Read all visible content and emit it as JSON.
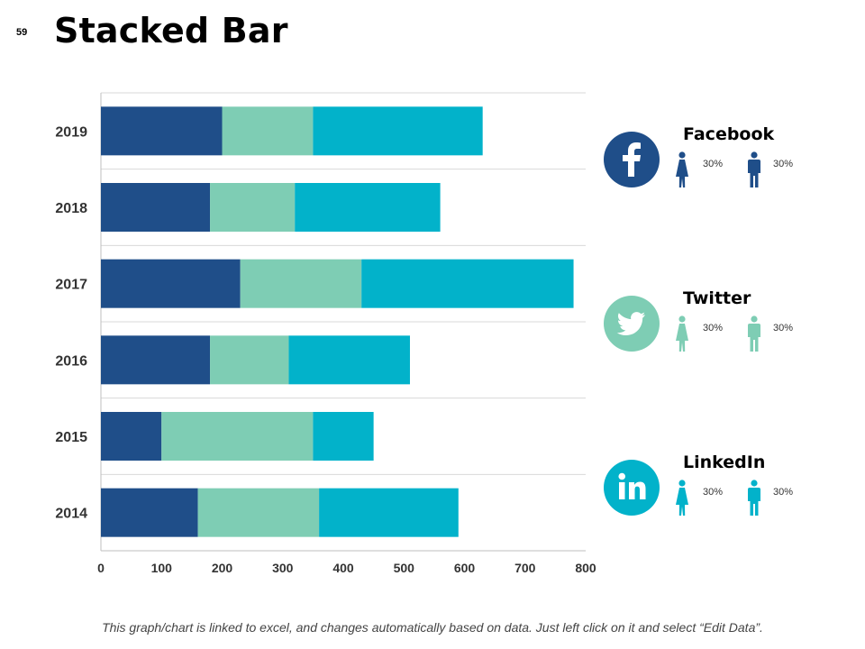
{
  "page_number": "59",
  "title": "Stacked Bar",
  "chart_data": {
    "type": "bar",
    "orientation": "horizontal",
    "stacked": true,
    "categories": [
      "2019",
      "2018",
      "2017",
      "2016",
      "2015",
      "2014"
    ],
    "series": [
      {
        "values": [
          200,
          180,
          230,
          180,
          100,
          160
        ],
        "color": "#1f4e89"
      },
      {
        "values": [
          150,
          140,
          200,
          130,
          250,
          200
        ],
        "color": "#7ecdb4"
      },
      {
        "values": [
          280,
          240,
          350,
          200,
          100,
          230
        ],
        "color": "#02b2ca"
      }
    ],
    "xlim": [
      0,
      800
    ],
    "xticks": [
      "0",
      "100",
      "200",
      "300",
      "400",
      "500",
      "600",
      "700",
      "800"
    ],
    "grid": true,
    "legend": "none"
  },
  "social": [
    {
      "name": "Facebook",
      "icon": "facebook-icon",
      "color": "#1f4e89",
      "female_pct": "30%",
      "male_pct": "30%"
    },
    {
      "name": "Twitter",
      "icon": "twitter-icon",
      "color": "#7ecdb4",
      "female_pct": "30%",
      "male_pct": "30%"
    },
    {
      "name": "LinkedIn",
      "icon": "linkedin-icon",
      "color": "#02b2ca",
      "female_pct": "30%",
      "male_pct": "30%"
    }
  ],
  "footer": "This graph/chart is linked to excel, and changes automatically based on data. Just left click on it and select “Edit Data”."
}
